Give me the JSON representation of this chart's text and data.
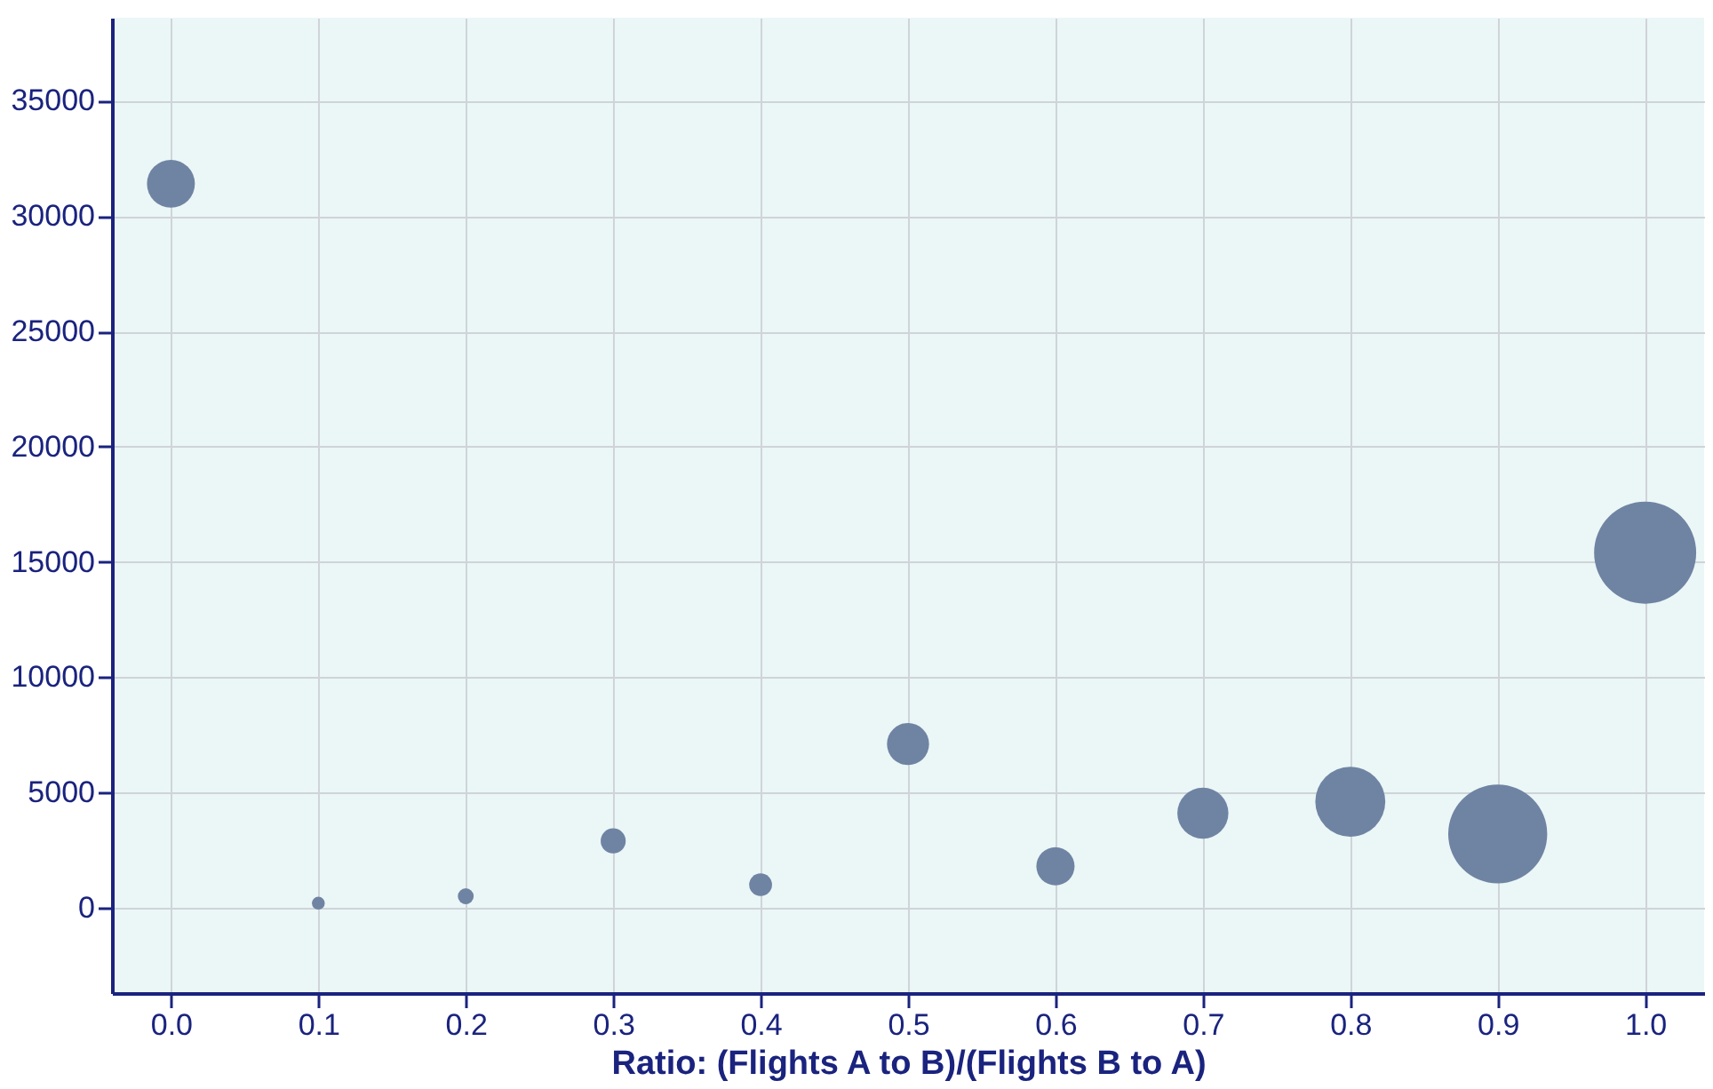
{
  "chart_data": {
    "type": "bubble",
    "xlabel": "Ratio: (Flights A to B)/(Flights B to A)",
    "x": [
      0.0,
      0.1,
      0.2,
      0.3,
      0.4,
      0.5,
      0.6,
      0.7,
      0.8,
      0.9,
      1.0
    ],
    "values": [
      31400,
      200,
      500,
      2900,
      1000,
      7100,
      1800,
      4100,
      4600,
      3200,
      15400
    ],
    "sizes": [
      0.22,
      0.016,
      0.024,
      0.06,
      0.05,
      0.17,
      0.14,
      0.25,
      0.47,
      0.94,
      1
    ],
    "color": "#6f84a3",
    "xlim": [
      -0.04,
      1.04
    ],
    "xticks": [
      {
        "value": 0,
        "label": "0.0"
      },
      0.1,
      0.2,
      0.3,
      0.4,
      0.5,
      0.6,
      0.7,
      0.8,
      0.9,
      {
        "value": 1,
        "label": "1.0"
      }
    ],
    "ylim": [
      -3700,
      38600
    ],
    "yticks": [
      0,
      5000,
      10000,
      15000,
      20000,
      25000,
      30000,
      35000
    ],
    "grid": true,
    "legend": false
  }
}
